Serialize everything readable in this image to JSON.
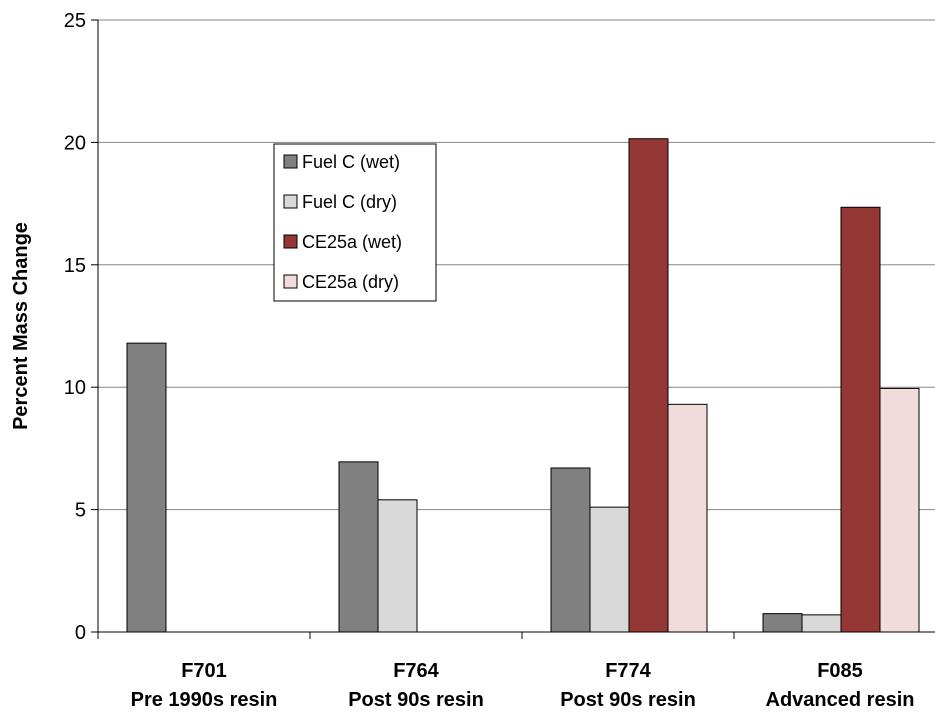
{
  "chart_data": {
    "type": "bar",
    "ylabel": "Percent Mass Change",
    "ylim": [
      0,
      25
    ],
    "yticks": [
      0,
      5,
      10,
      15,
      20,
      25
    ],
    "grid": true,
    "legend_position": "upper-left-center",
    "categories": [
      {
        "code": "F701",
        "desc": "Pre 1990s resin"
      },
      {
        "code": "F764",
        "desc": "Post 90s resin"
      },
      {
        "code": "F774",
        "desc": "Post 90s resin"
      },
      {
        "code": "F085",
        "desc": "Advanced resin"
      }
    ],
    "series": [
      {
        "name": "Fuel C (wet)",
        "color": "#808080",
        "values": [
          11.8,
          6.95,
          6.7,
          0.75
        ]
      },
      {
        "name": "Fuel C (dry)",
        "color": "#d9d9d9",
        "values": [
          null,
          5.4,
          5.1,
          0.7
        ]
      },
      {
        "name": "CE25a (wet)",
        "color": "#953735",
        "values": [
          null,
          null,
          20.15,
          17.35
        ]
      },
      {
        "name": "CE25a (dry)",
        "color": "#f2dcdb",
        "values": [
          null,
          null,
          9.3,
          9.95
        ]
      }
    ]
  }
}
